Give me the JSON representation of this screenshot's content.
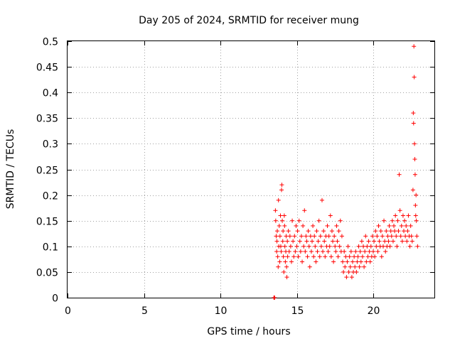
{
  "chart_data": {
    "type": "scatter",
    "title": "Day 205 of 2024, SRMTID for receiver mung",
    "xlabel": "GPS time / hours",
    "ylabel": "SRMTID / TECUs",
    "xlim": [
      0,
      24
    ],
    "ylim": [
      0,
      0.5
    ],
    "xticks": [
      0,
      5,
      10,
      15,
      20
    ],
    "xtick_labels": [
      "0",
      "5",
      "10",
      "15",
      "20"
    ],
    "yticks": [
      0,
      0.05,
      0.1,
      0.15,
      0.2,
      0.25,
      0.3,
      0.35,
      0.4,
      0.45,
      0.5
    ],
    "ytick_labels": [
      "0",
      "0.05",
      "0.1",
      "0.15",
      "0.2",
      "0.25",
      "0.3",
      "0.35",
      "0.4",
      "0.45",
      "0.5"
    ],
    "grid": true,
    "marker": "+",
    "color": "#ff0000",
    "series": [
      {
        "name": "SRMTID",
        "x": [
          13.5,
          13.52,
          13.55,
          13.6,
          13.62,
          13.65,
          13.68,
          13.7,
          13.72,
          13.75,
          13.78,
          13.8,
          13.82,
          13.85,
          13.88,
          13.9,
          13.93,
          13.95,
          13.98,
          14.0,
          14.02,
          14.05,
          14.08,
          14.1,
          14.12,
          14.15,
          14.18,
          14.2,
          14.22,
          14.25,
          14.28,
          14.3,
          14.33,
          14.35,
          14.38,
          14.4,
          14.45,
          14.5,
          14.55,
          14.6,
          14.65,
          14.7,
          14.75,
          14.8,
          14.85,
          14.9,
          14.95,
          15.0,
          15.05,
          15.1,
          15.15,
          15.2,
          15.25,
          15.3,
          15.35,
          15.4,
          15.45,
          15.5,
          15.55,
          15.6,
          15.65,
          15.7,
          15.75,
          15.8,
          15.85,
          15.9,
          15.95,
          16.0,
          16.05,
          16.1,
          16.15,
          16.2,
          16.25,
          16.3,
          16.35,
          16.4,
          16.45,
          16.5,
          16.55,
          16.6,
          16.65,
          16.7,
          16.75,
          16.8,
          16.85,
          16.9,
          16.95,
          17.0,
          17.05,
          17.1,
          17.15,
          17.2,
          17.25,
          17.3,
          17.35,
          17.4,
          17.45,
          17.5,
          17.55,
          17.6,
          17.65,
          17.7,
          17.75,
          17.8,
          17.85,
          17.9,
          17.95,
          18.0,
          18.05,
          18.1,
          18.15,
          18.2,
          18.25,
          18.3,
          18.35,
          18.4,
          18.45,
          18.5,
          18.55,
          18.6,
          18.65,
          18.7,
          18.75,
          18.8,
          18.85,
          18.9,
          18.95,
          19.0,
          19.05,
          19.1,
          19.15,
          19.2,
          19.25,
          19.3,
          19.35,
          19.4,
          19.45,
          19.5,
          19.55,
          19.6,
          19.65,
          19.7,
          19.75,
          19.8,
          19.85,
          19.9,
          19.95,
          20.0,
          20.05,
          20.1,
          20.15,
          20.2,
          20.25,
          20.3,
          20.35,
          20.4,
          20.45,
          20.5,
          20.55,
          20.6,
          20.65,
          20.7,
          20.75,
          20.8,
          20.85,
          20.9,
          20.95,
          21.0,
          21.05,
          21.1,
          21.15,
          21.2,
          21.25,
          21.3,
          21.35,
          21.4,
          21.45,
          21.5,
          21.55,
          21.6,
          21.65,
          21.7,
          21.75,
          21.8,
          21.85,
          21.9,
          21.95,
          22.0,
          22.05,
          22.1,
          22.15,
          22.2,
          22.25,
          22.3,
          22.35,
          22.4,
          22.45,
          22.5,
          22.55,
          22.6,
          22.62,
          22.64,
          22.66,
          22.68,
          22.7,
          22.72,
          22.74,
          22.76,
          22.78,
          22.8,
          22.82,
          22.85,
          22.9
        ],
        "y": [
          0.0,
          0.0,
          0.0,
          0.17,
          0.15,
          0.12,
          0.09,
          0.11,
          0.13,
          0.08,
          0.06,
          0.19,
          0.1,
          0.14,
          0.07,
          0.12,
          0.16,
          0.1,
          0.09,
          0.21,
          0.22,
          0.15,
          0.11,
          0.13,
          0.08,
          0.05,
          0.16,
          0.14,
          0.1,
          0.07,
          0.09,
          0.12,
          0.06,
          0.04,
          0.11,
          0.08,
          0.13,
          0.09,
          0.12,
          0.1,
          0.07,
          0.15,
          0.11,
          0.08,
          0.12,
          0.09,
          0.14,
          0.1,
          0.13,
          0.08,
          0.15,
          0.11,
          0.09,
          0.12,
          0.07,
          0.14,
          0.1,
          0.17,
          0.09,
          0.12,
          0.11,
          0.08,
          0.13,
          0.1,
          0.06,
          0.12,
          0.09,
          0.11,
          0.14,
          0.08,
          0.12,
          0.1,
          0.07,
          0.13,
          0.09,
          0.11,
          0.15,
          0.08,
          0.12,
          0.1,
          0.19,
          0.09,
          0.13,
          0.11,
          0.08,
          0.12,
          0.1,
          0.14,
          0.09,
          0.12,
          0.1,
          0.16,
          0.08,
          0.13,
          0.11,
          0.07,
          0.12,
          0.1,
          0.09,
          0.14,
          0.11,
          0.08,
          0.13,
          0.1,
          0.15,
          0.09,
          0.12,
          0.07,
          0.05,
          0.09,
          0.06,
          0.08,
          0.04,
          0.07,
          0.1,
          0.05,
          0.08,
          0.06,
          0.09,
          0.04,
          0.07,
          0.05,
          0.08,
          0.06,
          0.09,
          0.05,
          0.07,
          0.08,
          0.1,
          0.06,
          0.09,
          0.07,
          0.11,
          0.08,
          0.1,
          0.06,
          0.09,
          0.12,
          0.07,
          0.1,
          0.08,
          0.11,
          0.09,
          0.07,
          0.1,
          0.08,
          0.12,
          0.09,
          0.11,
          0.08,
          0.13,
          0.1,
          0.12,
          0.09,
          0.14,
          0.11,
          0.1,
          0.13,
          0.08,
          0.12,
          0.1,
          0.15,
          0.11,
          0.09,
          0.13,
          0.1,
          0.12,
          0.11,
          0.14,
          0.1,
          0.13,
          0.12,
          0.15,
          0.11,
          0.14,
          0.13,
          0.16,
          0.12,
          0.1,
          0.15,
          0.13,
          0.24,
          0.17,
          0.12,
          0.14,
          0.11,
          0.16,
          0.13,
          0.15,
          0.12,
          0.14,
          0.11,
          0.13,
          0.16,
          0.12,
          0.1,
          0.14,
          0.12,
          0.11,
          0.21,
          0.36,
          0.34,
          0.49,
          0.43,
          0.3,
          0.27,
          0.24,
          0.18,
          0.16,
          0.2,
          0.15,
          0.12,
          0.1
        ]
      }
    ]
  }
}
